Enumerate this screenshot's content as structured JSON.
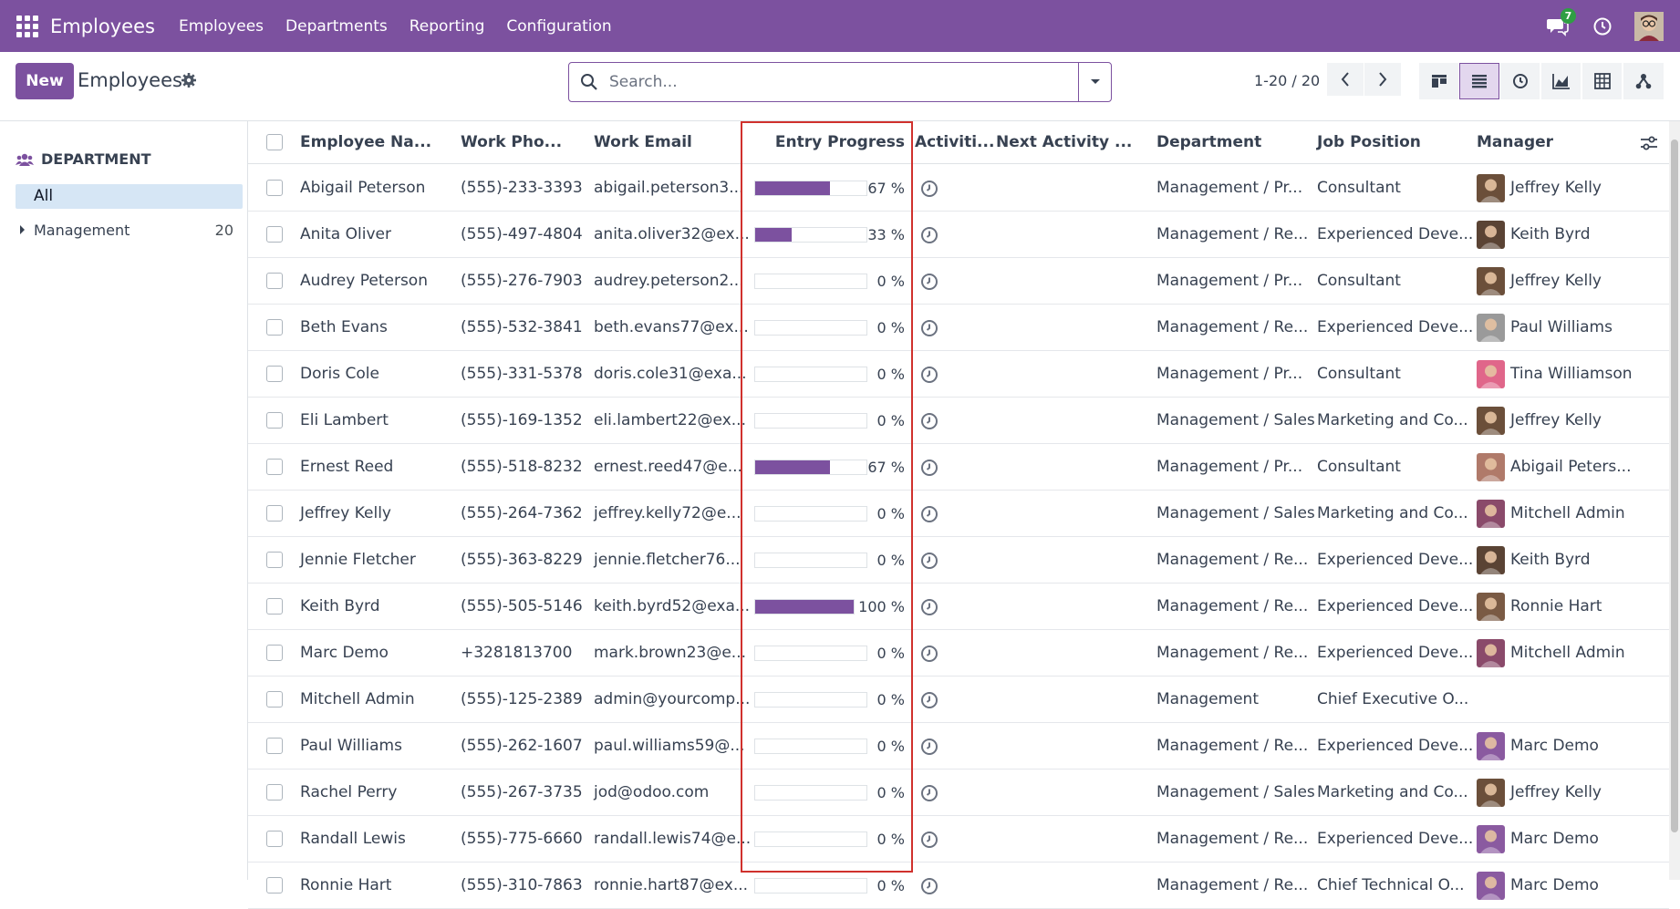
{
  "app": {
    "brand": "Employees",
    "menus": [
      "Employees",
      "Departments",
      "Reporting",
      "Configuration"
    ],
    "chat_count": "7"
  },
  "control": {
    "new_label": "New",
    "breadcrumb": "Employees",
    "search_placeholder": "Search...",
    "pager": "1-20 / 20"
  },
  "sidebar": {
    "header": "DEPARTMENT",
    "all_label": "All",
    "items": [
      {
        "label": "Management",
        "count": "20"
      }
    ]
  },
  "columns": [
    "Employee Na...",
    "Work Pho...",
    "Work Email",
    "Entry Progress",
    "Activiti...",
    "Next Activity ...",
    "Department",
    "Job Position",
    "Manager"
  ],
  "rows": [
    {
      "name": "Abigail Peterson",
      "phone": "(555)-233-3393",
      "email": "abigail.peterson3...",
      "progress": 67,
      "progress_label": "67 %",
      "department": "Management / Pr...",
      "job": "Consultant",
      "manager": "Jeffrey Kelly",
      "manager_color": "#6b4f3a"
    },
    {
      "name": "Anita Oliver",
      "phone": "(555)-497-4804",
      "email": "anita.oliver32@ex...",
      "progress": 33,
      "progress_label": "33 %",
      "department": "Management / Re...",
      "job": "Experienced Deve...",
      "manager": "Keith Byrd",
      "manager_color": "#5a4334"
    },
    {
      "name": "Audrey Peterson",
      "phone": "(555)-276-7903",
      "email": "audrey.peterson2...",
      "progress": 0,
      "progress_label": "0 %",
      "department": "Management / Pr...",
      "job": "Consultant",
      "manager": "Jeffrey Kelly",
      "manager_color": "#6b4f3a"
    },
    {
      "name": "Beth Evans",
      "phone": "(555)-532-3841",
      "email": "beth.evans77@ex...",
      "progress": 0,
      "progress_label": "0 %",
      "department": "Management / Re...",
      "job": "Experienced Deve...",
      "manager": "Paul Williams",
      "manager_color": "#9a9a9a"
    },
    {
      "name": "Doris Cole",
      "phone": "(555)-331-5378",
      "email": "doris.cole31@exa...",
      "progress": 0,
      "progress_label": "0 %",
      "department": "Management / Pr...",
      "job": "Consultant",
      "manager": "Tina Williamson",
      "manager_color": "#e0668a"
    },
    {
      "name": "Eli Lambert",
      "phone": "(555)-169-1352",
      "email": "eli.lambert22@ex...",
      "progress": 0,
      "progress_label": "0 %",
      "department": "Management / Sales",
      "job": "Marketing and Co...",
      "manager": "Jeffrey Kelly",
      "manager_color": "#6b4f3a"
    },
    {
      "name": "Ernest Reed",
      "phone": "(555)-518-8232",
      "email": "ernest.reed47@e...",
      "progress": 67,
      "progress_label": "67 %",
      "department": "Management / Pr...",
      "job": "Consultant",
      "manager": "Abigail Peters...",
      "manager_color": "#b07a6a"
    },
    {
      "name": "Jeffrey Kelly",
      "phone": "(555)-264-7362",
      "email": "jeffrey.kelly72@e...",
      "progress": 0,
      "progress_label": "0 %",
      "department": "Management / Sales",
      "job": "Marketing and Co...",
      "manager": "Mitchell Admin",
      "manager_color": "#8a4a6a"
    },
    {
      "name": "Jennie Fletcher",
      "phone": "(555)-363-8229",
      "email": "jennie.fletcher76...",
      "progress": 0,
      "progress_label": "0 %",
      "department": "Management / Re...",
      "job": "Experienced Deve...",
      "manager": "Keith Byrd",
      "manager_color": "#5a4334"
    },
    {
      "name": "Keith Byrd",
      "phone": "(555)-505-5146",
      "email": "keith.byrd52@exa...",
      "progress": 100,
      "progress_label": "100 %",
      "department": "Management / Re...",
      "job": "Experienced Deve...",
      "manager": "Ronnie Hart",
      "manager_color": "#7a5a44"
    },
    {
      "name": "Marc Demo",
      "phone": "+3281813700",
      "email": "mark.brown23@e...",
      "progress": 0,
      "progress_label": "0 %",
      "department": "Management / Re...",
      "job": "Experienced Deve...",
      "manager": "Mitchell Admin",
      "manager_color": "#8a4a6a"
    },
    {
      "name": "Mitchell Admin",
      "phone": "(555)-125-2389",
      "email": "admin@yourcomp...",
      "progress": 0,
      "progress_label": "0 %",
      "department": "Management",
      "job": "Chief Executive O...",
      "manager": "",
      "manager_color": ""
    },
    {
      "name": "Paul Williams",
      "phone": "(555)-262-1607",
      "email": "paul.williams59@...",
      "progress": 0,
      "progress_label": "0 %",
      "department": "Management / Re...",
      "job": "Experienced Deve...",
      "manager": "Marc Demo",
      "manager_color": "#8a5aa0"
    },
    {
      "name": "Rachel Perry",
      "phone": "(555)-267-3735",
      "email": "jod@odoo.com",
      "progress": 0,
      "progress_label": "0 %",
      "department": "Management / Sales",
      "job": "Marketing and Co...",
      "manager": "Jeffrey Kelly",
      "manager_color": "#6b4f3a"
    },
    {
      "name": "Randall Lewis",
      "phone": "(555)-775-6660",
      "email": "randall.lewis74@e...",
      "progress": 0,
      "progress_label": "0 %",
      "department": "Management / Re...",
      "job": "Experienced Deve...",
      "manager": "Marc Demo",
      "manager_color": "#8a5aa0"
    },
    {
      "name": "Ronnie Hart",
      "phone": "(555)-310-7863",
      "email": "ronnie.hart87@ex...",
      "progress": 0,
      "progress_label": "0 %",
      "department": "Management / Re...",
      "job": "Chief Technical O...",
      "manager": "Marc Demo",
      "manager_color": "#8a5aa0"
    }
  ],
  "colors": {
    "brand": "#7c519f",
    "highlight": "#d0312d"
  }
}
